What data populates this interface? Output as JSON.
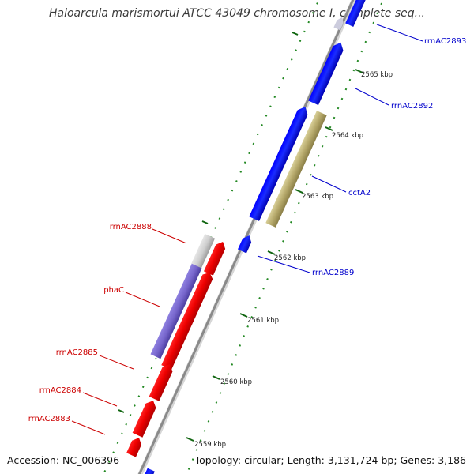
{
  "title": "Haloarcula marismortui ATCC 43049 chromosome I, complete seq...",
  "footer": {
    "accession": "Accession: NC_006396",
    "topology": "Topology: circular; Length: 3,131,724 bp; Genes: 3,186"
  },
  "colors": {
    "forward_strand": "#0000ee",
    "reverse_strand": "#ee0000",
    "rrna": "#c8c8c8",
    "phac": "#7766cc",
    "ccta2": "#b5a86a",
    "backbone": "#8a8a8a",
    "ticks": "#228822"
  },
  "scale_ticks": [
    {
      "kbp": 2559,
      "label": "2559 kbp"
    },
    {
      "kbp": 2560,
      "label": "2560 kbp"
    },
    {
      "kbp": 2561,
      "label": "2561 kbp"
    },
    {
      "kbp": 2562,
      "label": "2562 kbp"
    },
    {
      "kbp": 2563,
      "label": "2563 kbp"
    },
    {
      "kbp": 2564,
      "label": "2564 kbp"
    },
    {
      "kbp": 2565,
      "label": "2565 kbp"
    }
  ],
  "gene_labels": [
    {
      "id": "rrnAC2893",
      "text": "rrnAC2893",
      "strand": "forward"
    },
    {
      "id": "rrnAC2892",
      "text": "rrnAC2892",
      "strand": "forward"
    },
    {
      "id": "cctA2",
      "text": "cctA2",
      "strand": "forward"
    },
    {
      "id": "rrnAC2889",
      "text": "rrnAC2889",
      "strand": "forward"
    },
    {
      "id": "rrnAC2888",
      "text": "rrnAC2888",
      "strand": "reverse"
    },
    {
      "id": "phaC",
      "text": "phaC",
      "strand": "reverse"
    },
    {
      "id": "rrnAC2885",
      "text": "rrnAC2885",
      "strand": "reverse"
    },
    {
      "id": "rrnAC2884",
      "text": "rrnAC2884",
      "strand": "reverse"
    },
    {
      "id": "rrnAC2883",
      "text": "rrnAC2883",
      "strand": "reverse"
    }
  ]
}
